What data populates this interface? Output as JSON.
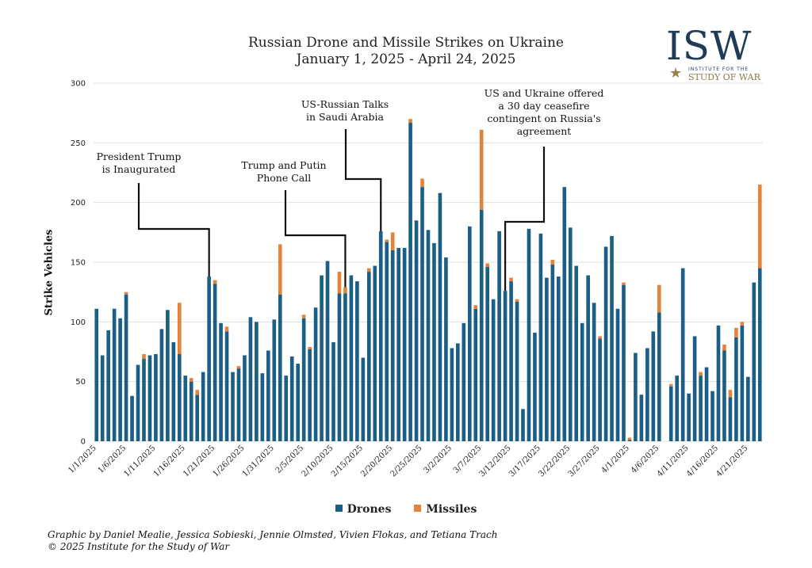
{
  "colors": {
    "drones": "#1b5f86",
    "missiles": "#e5833a",
    "grid": "#e0e0e0",
    "annotation_line": "#111111"
  },
  "logo": {
    "mark": "ISW",
    "line1": "INSTITUTE FOR THE",
    "line2": "STUDY OF WAR",
    "icon": "star-icon"
  },
  "credit": {
    "line1": "Graphic by Daniel Mealie, Jessica Sobieski, Jennie Olmsted, Vivien Flokas, and Tetiana Trach",
    "line2": "© 2025 Institute for the Study of War"
  },
  "chart_data": {
    "type": "bar",
    "stacked": true,
    "title": "Russian Drone and Missile Strikes on Ukraine",
    "subtitle": "January 1, 2025 - April 24, 2025",
    "ylabel": "Strike Vehicles",
    "xlabel": "",
    "ylim": [
      0,
      300
    ],
    "yticks": [
      0,
      50,
      100,
      150,
      200,
      250,
      300
    ],
    "grid": true,
    "legend": "bottom",
    "x_start": "2025-01-01",
    "x_tick_labels": [
      "1/1/2025",
      "1/6/2025",
      "1/11/2025",
      "1/16/2025",
      "1/21/2025",
      "1/26/2025",
      "1/31/2025",
      "2/5/2025",
      "2/10/2025",
      "2/15/2025",
      "2/20/2025",
      "2/25/2025",
      "3/2/2025",
      "3/7/2025",
      "3/12/2025",
      "3/17/2025",
      "3/22/2025",
      "3/27/2025",
      "4/1/2025",
      "4/6/2025",
      "4/11/2025",
      "4/16/2025",
      "4/21/2025"
    ],
    "series": [
      {
        "name": "Drones",
        "values": [
          111,
          72,
          93,
          111,
          103,
          123,
          38,
          64,
          69,
          72,
          73,
          94,
          110,
          83,
          73,
          55,
          50,
          39,
          58,
          138,
          132,
          99,
          92,
          58,
          61,
          72,
          104,
          100,
          57,
          76,
          102,
          123,
          55,
          71,
          65,
          103,
          77,
          112,
          139,
          151,
          83,
          124,
          124,
          139,
          134,
          70,
          142,
          147,
          176,
          167,
          160,
          162,
          162,
          267,
          185,
          213,
          177,
          166,
          208,
          154,
          78,
          82,
          99,
          180,
          111,
          194,
          146,
          119,
          176,
          126,
          134,
          117,
          27,
          178,
          91,
          174,
          137,
          148,
          138,
          213,
          179,
          147,
          99,
          139,
          116,
          86,
          163,
          172,
          111,
          131,
          1,
          74,
          39,
          78,
          92,
          108,
          0,
          46,
          55,
          145,
          40,
          88,
          55,
          62,
          42,
          97,
          76,
          37,
          87,
          97,
          54,
          133,
          145
        ]
      },
      {
        "name": "Missiles",
        "values": [
          0,
          0,
          0,
          0,
          0,
          2,
          0,
          0,
          4,
          0,
          0,
          0,
          0,
          0,
          43,
          0,
          3,
          4,
          0,
          0,
          3,
          0,
          4,
          0,
          2,
          0,
          0,
          0,
          0,
          0,
          0,
          42,
          0,
          0,
          0,
          3,
          2,
          0,
          0,
          0,
          0,
          18,
          5,
          0,
          0,
          0,
          3,
          0,
          0,
          2,
          15,
          0,
          0,
          3,
          0,
          7,
          0,
          0,
          0,
          0,
          0,
          0,
          0,
          0,
          3,
          67,
          3,
          0,
          0,
          0,
          3,
          2,
          0,
          0,
          0,
          0,
          0,
          4,
          0,
          0,
          0,
          0,
          0,
          0,
          0,
          2,
          0,
          0,
          0,
          2,
          2,
          0,
          0,
          0,
          0,
          23,
          0,
          2,
          0,
          0,
          0,
          0,
          3,
          0,
          0,
          0,
          5,
          6,
          8,
          3,
          0,
          0,
          70
        ]
      }
    ],
    "annotations": [
      {
        "date": "2025-01-20",
        "lines": [
          "President Trump",
          "is Inaugurated"
        ]
      },
      {
        "date": "2025-02-12",
        "lines": [
          "Trump and Putin",
          "Phone Call"
        ]
      },
      {
        "date": "2025-02-18",
        "lines": [
          "US-Russian Talks",
          "in Saudi Arabia"
        ]
      },
      {
        "date": "2025-03-11",
        "lines": [
          "US and Ukraine offered",
          "a 30 day ceasefire",
          "contingent on Russia's",
          "agreement"
        ]
      }
    ]
  }
}
